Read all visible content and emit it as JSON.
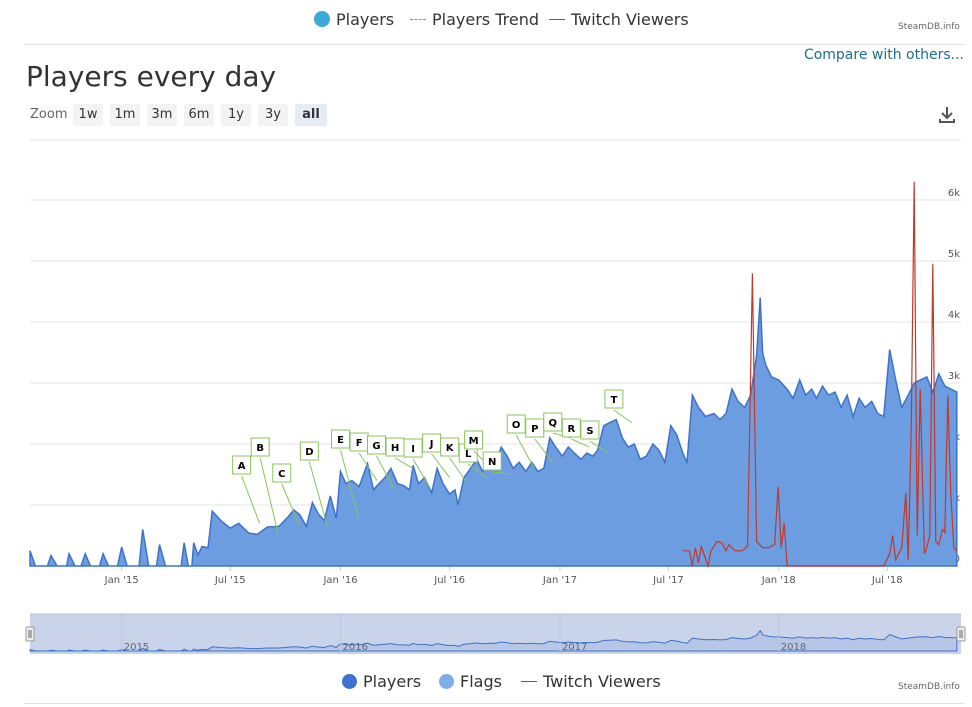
{
  "top_legend": {
    "items": [
      {
        "label": "Players",
        "style": "dot",
        "color": "#3da9d9"
      },
      {
        "label": "Players Trend",
        "style": "dash",
        "color": "#888888"
      },
      {
        "label": "Twitch Viewers",
        "style": "line",
        "color": "#c0392b"
      }
    ],
    "credit": "SteamDB.info"
  },
  "compare_link": "Compare with others...",
  "title": "Players every day",
  "zoom": {
    "label": "Zoom",
    "buttons": [
      "1w",
      "1m",
      "3m",
      "6m",
      "1y",
      "3y",
      "all"
    ],
    "active": "all"
  },
  "export_icon": "download-icon",
  "bottom_legend": {
    "items": [
      {
        "label": "Players",
        "color": "#3b73cf"
      },
      {
        "label": "Flags",
        "color": "#7eaee8"
      },
      {
        "label": "Twitch Viewers",
        "color": "#c0392b"
      }
    ],
    "credit": "SteamDB.info"
  },
  "chart_data": {
    "type": "area",
    "title": "Players every day",
    "x_ticks": [
      "Jan '15",
      "Jul '15",
      "Jan '16",
      "Jul '16",
      "Jan '17",
      "Jul '17",
      "Jan '18",
      "Jul '18"
    ],
    "y_ticks": [
      "0",
      "1k",
      "2k",
      "3k",
      "4k",
      "5k",
      "6k"
    ],
    "ylim": [
      0,
      6500
    ],
    "grid": true,
    "navigator_labels": [
      "2015",
      "2016",
      "2017",
      "2018"
    ],
    "flags": [
      {
        "label": "A",
        "x": "2015-07-20"
      },
      {
        "label": "B",
        "x": "2015-08-20"
      },
      {
        "label": "C",
        "x": "2015-09-25"
      },
      {
        "label": "D",
        "x": "2015-11-10"
      },
      {
        "label": "E",
        "x": "2016-01-01"
      },
      {
        "label": "F",
        "x": "2016-02-01"
      },
      {
        "label": "G",
        "x": "2016-03-01"
      },
      {
        "label": "H",
        "x": "2016-04-01"
      },
      {
        "label": "I",
        "x": "2016-05-01"
      },
      {
        "label": "J",
        "x": "2016-06-01"
      },
      {
        "label": "K",
        "x": "2016-07-01"
      },
      {
        "label": "L",
        "x": "2016-08-01"
      },
      {
        "label": "M",
        "x": "2016-08-10"
      },
      {
        "label": "N",
        "x": "2016-09-10"
      },
      {
        "label": "O",
        "x": "2016-10-20"
      },
      {
        "label": "P",
        "x": "2016-11-20"
      },
      {
        "label": "Q",
        "x": "2016-12-20"
      },
      {
        "label": "R",
        "x": "2017-01-20"
      },
      {
        "label": "S",
        "x": "2017-02-20"
      },
      {
        "label": "T",
        "x": "2017-04-01"
      }
    ],
    "series": [
      {
        "name": "Players",
        "color": "#6c9de0",
        "points": [
          [
            "2014-08-01",
            250
          ],
          [
            "2014-08-10",
            0
          ],
          [
            "2014-08-30",
            0
          ],
          [
            "2014-09-05",
            170
          ],
          [
            "2014-09-15",
            0
          ],
          [
            "2014-10-01",
            0
          ],
          [
            "2014-10-05",
            200
          ],
          [
            "2014-10-15",
            0
          ],
          [
            "2014-10-25",
            0
          ],
          [
            "2014-11-01",
            200
          ],
          [
            "2014-11-10",
            0
          ],
          [
            "2014-11-25",
            0
          ],
          [
            "2014-12-01",
            200
          ],
          [
            "2014-12-10",
            0
          ],
          [
            "2014-12-25",
            0
          ],
          [
            "2015-01-01",
            310
          ],
          [
            "2015-01-10",
            0
          ],
          [
            "2015-01-30",
            0
          ],
          [
            "2015-02-05",
            600
          ],
          [
            "2015-02-15",
            0
          ],
          [
            "2015-02-28",
            0
          ],
          [
            "2015-03-05",
            350
          ],
          [
            "2015-03-15",
            0
          ],
          [
            "2015-04-10",
            0
          ],
          [
            "2015-04-15",
            380
          ],
          [
            "2015-04-22",
            0
          ],
          [
            "2015-04-28",
            0
          ],
          [
            "2015-05-01",
            380
          ],
          [
            "2015-05-08",
            180
          ],
          [
            "2015-05-15",
            320
          ],
          [
            "2015-05-25",
            300
          ],
          [
            "2015-06-01",
            900
          ],
          [
            "2015-06-15",
            750
          ],
          [
            "2015-07-01",
            620
          ],
          [
            "2015-07-15",
            700
          ],
          [
            "2015-08-01",
            540
          ],
          [
            "2015-08-15",
            520
          ],
          [
            "2015-09-01",
            640
          ],
          [
            "2015-09-20",
            650
          ],
          [
            "2015-10-05",
            800
          ],
          [
            "2015-10-15",
            920
          ],
          [
            "2015-10-25",
            840
          ],
          [
            "2015-11-05",
            650
          ],
          [
            "2015-11-15",
            1040
          ],
          [
            "2015-11-25",
            850
          ],
          [
            "2015-12-05",
            750
          ],
          [
            "2015-12-15",
            1150
          ],
          [
            "2015-12-25",
            780
          ],
          [
            "2016-01-01",
            1550
          ],
          [
            "2016-01-10",
            1350
          ],
          [
            "2016-01-20",
            1400
          ],
          [
            "2016-02-01",
            1300
          ],
          [
            "2016-02-15",
            1680
          ],
          [
            "2016-02-25",
            1250
          ],
          [
            "2016-03-05",
            1350
          ],
          [
            "2016-03-15",
            1450
          ],
          [
            "2016-03-25",
            1600
          ],
          [
            "2016-04-05",
            1350
          ],
          [
            "2016-04-15",
            1320
          ],
          [
            "2016-04-25",
            1250
          ],
          [
            "2016-05-01",
            1650
          ],
          [
            "2016-05-10",
            1350
          ],
          [
            "2016-05-20",
            1450
          ],
          [
            "2016-06-01",
            1200
          ],
          [
            "2016-06-10",
            1600
          ],
          [
            "2016-06-20",
            1350
          ],
          [
            "2016-07-01",
            1180
          ],
          [
            "2016-07-10",
            1250
          ],
          [
            "2016-07-15",
            1000
          ],
          [
            "2016-07-25",
            1450
          ],
          [
            "2016-08-05",
            1600
          ],
          [
            "2016-08-15",
            1750
          ],
          [
            "2016-08-25",
            1550
          ],
          [
            "2016-09-05",
            1700
          ],
          [
            "2016-09-15",
            1650
          ],
          [
            "2016-09-25",
            1950
          ],
          [
            "2016-10-05",
            1800
          ],
          [
            "2016-10-15",
            1600
          ],
          [
            "2016-10-25",
            1700
          ],
          [
            "2016-11-05",
            1550
          ],
          [
            "2016-11-15",
            1700
          ],
          [
            "2016-11-25",
            1550
          ],
          [
            "2016-12-05",
            1600
          ],
          [
            "2016-12-15",
            2100
          ],
          [
            "2016-12-25",
            1950
          ],
          [
            "2017-01-05",
            1800
          ],
          [
            "2017-01-15",
            1950
          ],
          [
            "2017-01-25",
            1850
          ],
          [
            "2017-02-05",
            1750
          ],
          [
            "2017-02-15",
            1850
          ],
          [
            "2017-02-25",
            1800
          ],
          [
            "2017-03-05",
            1900
          ],
          [
            "2017-03-15",
            2300
          ],
          [
            "2017-03-25",
            2350
          ],
          [
            "2017-04-05",
            2400
          ],
          [
            "2017-04-15",
            2100
          ],
          [
            "2017-04-25",
            1950
          ],
          [
            "2017-05-05",
            2000
          ],
          [
            "2017-05-15",
            1750
          ],
          [
            "2017-05-25",
            1800
          ],
          [
            "2017-06-05",
            2000
          ],
          [
            "2017-06-15",
            1900
          ],
          [
            "2017-06-25",
            1700
          ],
          [
            "2017-07-05",
            2300
          ],
          [
            "2017-07-15",
            2150
          ],
          [
            "2017-07-25",
            1850
          ],
          [
            "2017-08-01",
            1700
          ],
          [
            "2017-08-10",
            2800
          ],
          [
            "2017-08-20",
            2600
          ],
          [
            "2017-09-01",
            2450
          ],
          [
            "2017-09-15",
            2500
          ],
          [
            "2017-09-25",
            2400
          ],
          [
            "2017-10-05",
            2500
          ],
          [
            "2017-10-15",
            2900
          ],
          [
            "2017-10-25",
            2700
          ],
          [
            "2017-11-05",
            2600
          ],
          [
            "2017-11-15",
            2800
          ],
          [
            "2017-11-25",
            3450
          ],
          [
            "2017-12-01",
            4400
          ],
          [
            "2017-12-05",
            3500
          ],
          [
            "2017-12-10",
            3300
          ],
          [
            "2017-12-20",
            3100
          ],
          [
            "2018-01-01",
            3050
          ],
          [
            "2018-01-15",
            2900
          ],
          [
            "2018-01-25",
            2750
          ],
          [
            "2018-02-05",
            3050
          ],
          [
            "2018-02-15",
            2800
          ],
          [
            "2018-02-25",
            2900
          ],
          [
            "2018-03-05",
            2750
          ],
          [
            "2018-03-15",
            2950
          ],
          [
            "2018-03-25",
            2800
          ],
          [
            "2018-04-05",
            2850
          ],
          [
            "2018-04-15",
            2600
          ],
          [
            "2018-04-25",
            2800
          ],
          [
            "2018-05-05",
            2450
          ],
          [
            "2018-05-15",
            2750
          ],
          [
            "2018-05-25",
            2600
          ],
          [
            "2018-06-05",
            2700
          ],
          [
            "2018-06-15",
            2500
          ],
          [
            "2018-06-25",
            2450
          ],
          [
            "2018-07-05",
            3550
          ],
          [
            "2018-07-15",
            3050
          ],
          [
            "2018-07-25",
            2600
          ],
          [
            "2018-08-05",
            2800
          ],
          [
            "2018-08-15",
            3000
          ],
          [
            "2018-08-25",
            3050
          ],
          [
            "2018-09-05",
            3100
          ],
          [
            "2018-09-15",
            2850
          ],
          [
            "2018-09-25",
            3150
          ],
          [
            "2018-10-05",
            2950
          ],
          [
            "2018-10-15",
            2900
          ],
          [
            "2018-10-25",
            2850
          ]
        ]
      },
      {
        "name": "Twitch Viewers",
        "color": "#c0392b",
        "points": [
          [
            "2017-07-25",
            250
          ],
          [
            "2017-08-05",
            250
          ],
          [
            "2017-08-10",
            0
          ],
          [
            "2017-08-15",
            300
          ],
          [
            "2017-08-20",
            50
          ],
          [
            "2017-08-25",
            320
          ],
          [
            "2017-09-05",
            0
          ],
          [
            "2017-09-10",
            250
          ],
          [
            "2017-09-20",
            400
          ],
          [
            "2017-09-28",
            380
          ],
          [
            "2017-10-05",
            250
          ],
          [
            "2017-10-10",
            350
          ],
          [
            "2017-10-20",
            250
          ],
          [
            "2017-11-01",
            250
          ],
          [
            "2017-11-10",
            330
          ],
          [
            "2017-11-18",
            4800
          ],
          [
            "2017-11-25",
            400
          ],
          [
            "2017-12-05",
            300
          ],
          [
            "2017-12-15",
            300
          ],
          [
            "2017-12-25",
            350
          ],
          [
            "2017-12-31",
            1300
          ],
          [
            "2018-01-05",
            300
          ],
          [
            "2018-01-10",
            700
          ],
          [
            "2018-01-15",
            0
          ],
          [
            "2018-06-25",
            0
          ],
          [
            "2018-07-05",
            200
          ],
          [
            "2018-07-10",
            500
          ],
          [
            "2018-07-15",
            100
          ],
          [
            "2018-07-25",
            300
          ],
          [
            "2018-08-01",
            1200
          ],
          [
            "2018-08-05",
            100
          ],
          [
            "2018-08-10",
            2200
          ],
          [
            "2018-08-15",
            6300
          ],
          [
            "2018-08-20",
            500
          ],
          [
            "2018-08-25",
            2900
          ],
          [
            "2018-09-01",
            200
          ],
          [
            "2018-09-05",
            300
          ],
          [
            "2018-09-10",
            500
          ],
          [
            "2018-09-15",
            4950
          ],
          [
            "2018-09-20",
            400
          ],
          [
            "2018-09-25",
            350
          ],
          [
            "2018-10-01",
            600
          ],
          [
            "2018-10-05",
            550
          ],
          [
            "2018-10-10",
            2800
          ],
          [
            "2018-10-15",
            1200
          ],
          [
            "2018-10-20",
            300
          ],
          [
            "2018-10-25",
            250
          ]
        ]
      }
    ]
  }
}
